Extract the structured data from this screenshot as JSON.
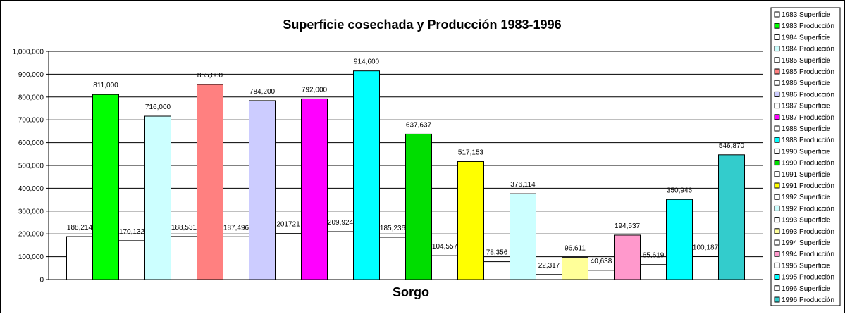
{
  "chart_data": {
    "type": "bar",
    "title": "Superficie cosechada y Producción 1983-1996",
    "xlabel": "Sorgo",
    "ylabel": "",
    "ylim": [
      0,
      1000000
    ],
    "yticks": [
      "0",
      "100,000",
      "200,000",
      "300,000",
      "400,000",
      "500,000",
      "600,000",
      "700,000",
      "800,000",
      "900,000",
      "1,000,000"
    ],
    "grid": true,
    "legend_position": "right",
    "categories": [
      "Sorgo"
    ],
    "series": [
      {
        "name": "1983 Superficie",
        "values": [
          188214
        ],
        "label": "188,214",
        "color": "#FFFFFF"
      },
      {
        "name": "1983 Producción",
        "values": [
          811000
        ],
        "label": "811,000",
        "color": "#00FF00"
      },
      {
        "name": "1984 Superficie",
        "values": [
          170132
        ],
        "label": "170,132",
        "color": "#FFFFFF"
      },
      {
        "name": "1984 Producción",
        "values": [
          716000
        ],
        "label": "716,000",
        "color": "#CCFFFF"
      },
      {
        "name": "1985 Superficie",
        "values": [
          188531
        ],
        "label": "188,531",
        "color": "#FFFFFF"
      },
      {
        "name": "1985 Producción",
        "values": [
          855000
        ],
        "label": "855,000",
        "color": "#FF8080"
      },
      {
        "name": "1986 Superficie",
        "values": [
          187496
        ],
        "label": "187,496",
        "color": "#FFFFFF"
      },
      {
        "name": "1986 Producción",
        "values": [
          784200
        ],
        "label": "784,200",
        "color": "#CCCCFF"
      },
      {
        "name": "1987 Superficie",
        "values": [
          201721
        ],
        "label": "201721",
        "color": "#FFFFFF"
      },
      {
        "name": "1987 Producción",
        "values": [
          792000
        ],
        "label": "792,000",
        "color": "#FF00FF"
      },
      {
        "name": "1988 Superficie",
        "values": [
          209924
        ],
        "label": "209,924",
        "color": "#FFFFFF"
      },
      {
        "name": "1988 Producción",
        "values": [
          914600
        ],
        "label": "914,600",
        "color": "#00FFFF"
      },
      {
        "name": "1990 Superficie",
        "values": [
          185236
        ],
        "label": "185,236",
        "color": "#FFFFFF"
      },
      {
        "name": "1990 Producción",
        "values": [
          637637
        ],
        "label": "637,637",
        "color": "#00DD00"
      },
      {
        "name": "1991 Superficie",
        "values": [
          104557
        ],
        "label": "104,557",
        "color": "#FFFFFF"
      },
      {
        "name": "1991 Producción",
        "values": [
          517153
        ],
        "label": "517,153",
        "color": "#FFFF00"
      },
      {
        "name": "1992 Superficie",
        "values": [
          78356
        ],
        "label": "78,356",
        "color": "#FFFFFF"
      },
      {
        "name": "1992 Producción",
        "values": [
          376114
        ],
        "label": "376,114",
        "color": "#CCFFFF"
      },
      {
        "name": "1993 Superficie",
        "values": [
          22317
        ],
        "label": "22,317",
        "color": "#FFFFFF"
      },
      {
        "name": "1993 Producción",
        "values": [
          96611
        ],
        "label": "96,611",
        "color": "#FFFF99"
      },
      {
        "name": "1994 Superficie",
        "values": [
          40638
        ],
        "label": "40,638",
        "color": "#FFFFFF"
      },
      {
        "name": "1994 Producción",
        "values": [
          194537
        ],
        "label": "194,537",
        "color": "#FF99CC"
      },
      {
        "name": "1995 Superficie",
        "values": [
          65619
        ],
        "label": "65,619",
        "color": "#FFFFFF"
      },
      {
        "name": "1995 Producción",
        "values": [
          350946
        ],
        "label": "350,946",
        "color": "#00FFFF"
      },
      {
        "name": "1996 Superficie",
        "values": [
          100187
        ],
        "label": "100,187",
        "color": "#FFFFFF"
      },
      {
        "name": "1996 Producción",
        "values": [
          546870
        ],
        "label": "546,870",
        "color": "#33CCCC"
      }
    ]
  }
}
